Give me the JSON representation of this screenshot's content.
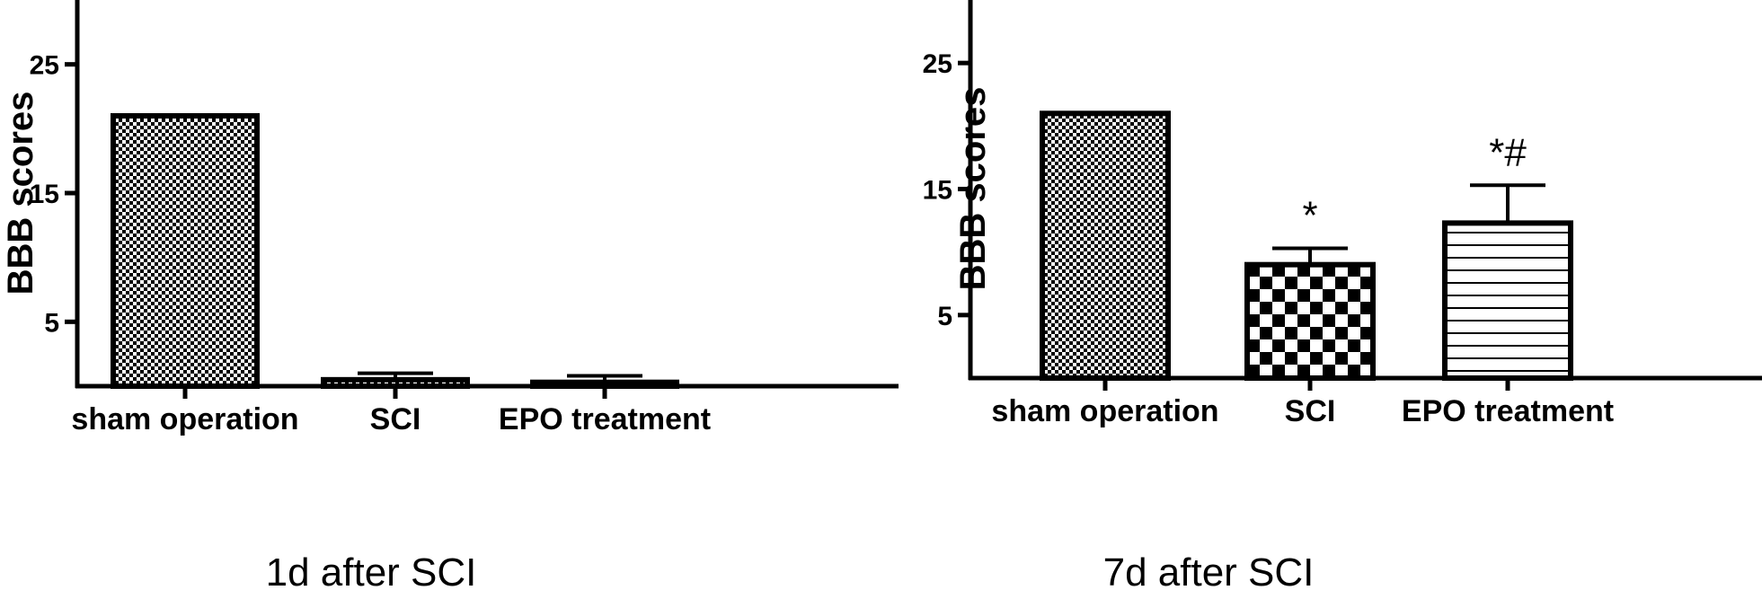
{
  "chart_data": [
    {
      "type": "bar",
      "categories": [
        "sham operation",
        "SCI",
        "EPO treatment"
      ],
      "values": [
        21,
        0.5,
        0.3
      ],
      "errors": [
        0,
        0.5,
        0.5
      ],
      "significance": [
        "",
        "",
        ""
      ],
      "patterns": [
        "checker-fine",
        "checker-fine",
        "checker-fine"
      ],
      "title": "",
      "xlabel": "1d after SCI",
      "ylabel": "BBB scores",
      "yticks": [
        5,
        15,
        25
      ],
      "ylim": [
        0,
        30
      ],
      "grid": false
    },
    {
      "type": "bar",
      "categories": [
        "sham operation",
        "SCI",
        "EPO treatment"
      ],
      "values": [
        21,
        9,
        12.3
      ],
      "errors": [
        0,
        1.3,
        3
      ],
      "significance": [
        "",
        "*",
        "*#"
      ],
      "patterns": [
        "checker-fine",
        "checker-coarse",
        "horizontal-lines"
      ],
      "title": "",
      "xlabel": "7d after SCI",
      "ylabel": "BBB scores",
      "yticks": [
        5,
        15,
        25
      ],
      "ylim": [
        0,
        30
      ],
      "grid": false
    }
  ]
}
